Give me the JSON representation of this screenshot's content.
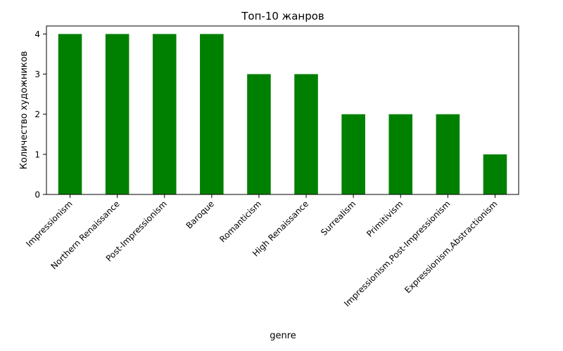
{
  "chart_data": {
    "type": "bar",
    "title": "Топ-10 жанров",
    "xlabel": "genre",
    "ylabel": "Количество художников",
    "categories": [
      "Impressionism",
      "Northern Renaissance",
      "Post-Impressionism",
      "Baroque",
      "Romanticism",
      "High Renaissance",
      "Surrealism",
      "Primitivism",
      "Impressionism,Post-Impressionism",
      "Expressionism,Abstractionism"
    ],
    "values": [
      4,
      4,
      4,
      4,
      3,
      3,
      2,
      2,
      2,
      1
    ],
    "ylim": [
      0,
      4.2
    ],
    "yticks": [
      0,
      1,
      2,
      3,
      4
    ],
    "bar_color": "#008000",
    "grid": false,
    "legend": "none"
  }
}
